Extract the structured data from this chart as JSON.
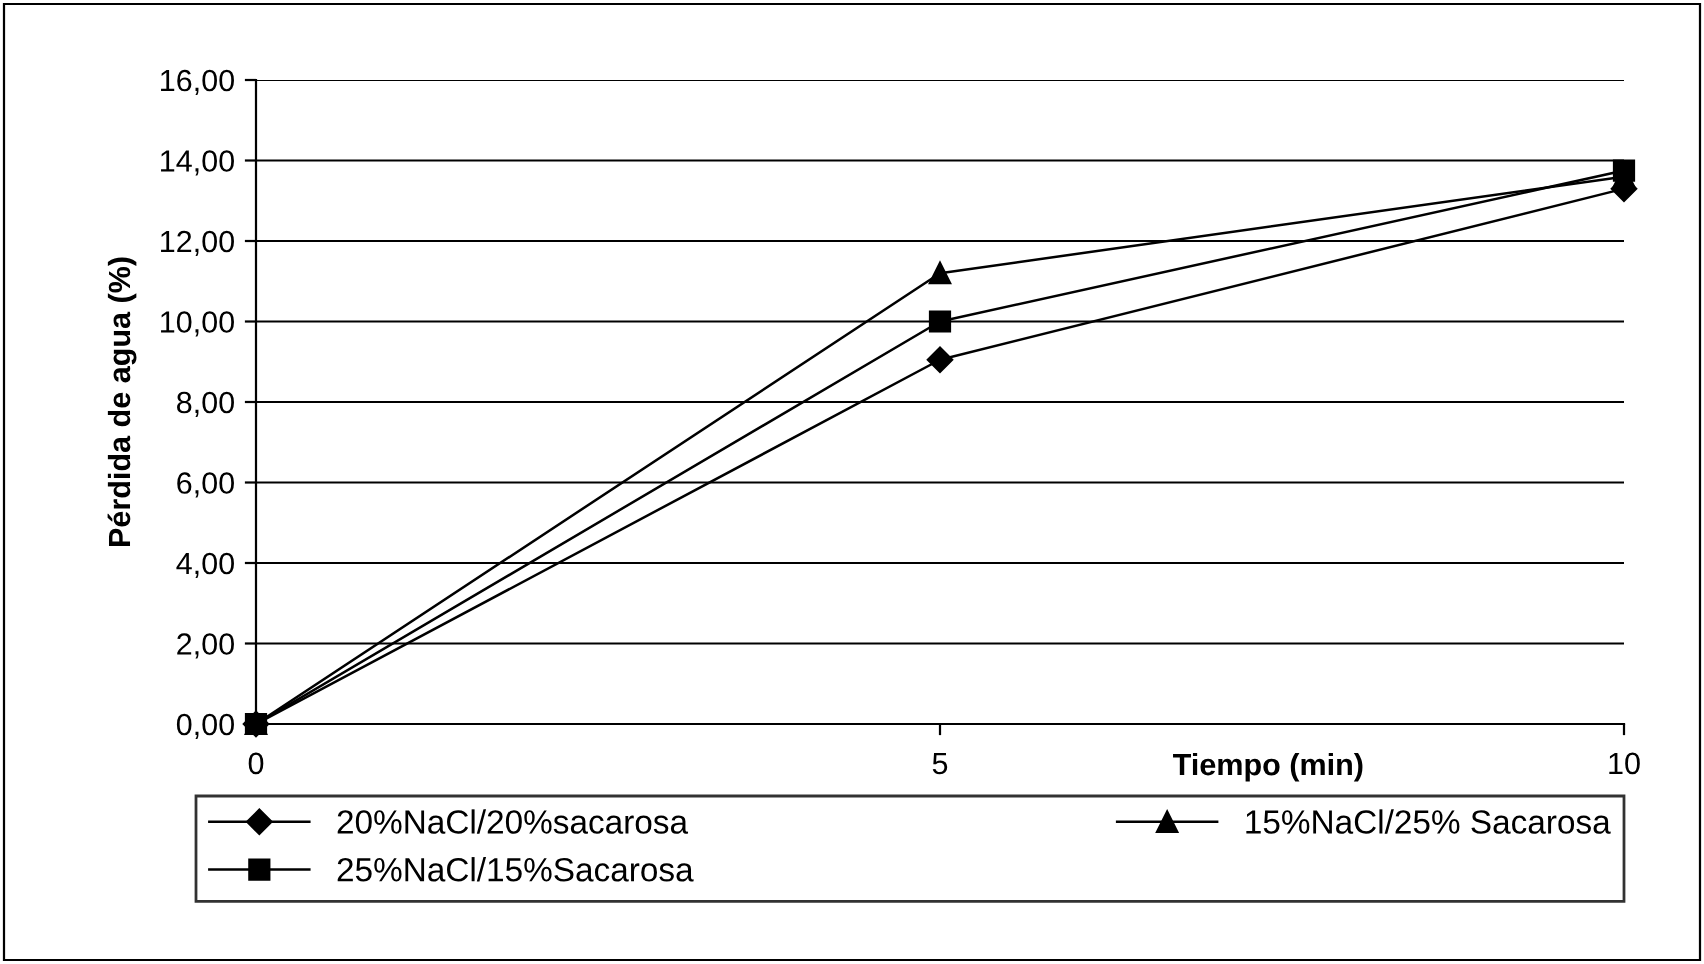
{
  "chart_data": {
    "type": "line",
    "xlabel": "Tiempo (min)",
    "ylabel": "Pérdida de agua (%)",
    "x": [
      0,
      5,
      10
    ],
    "series": [
      {
        "name": "20%NaCl/20%sacarosa",
        "color": "#000000",
        "marker": "diamond",
        "values": [
          0,
          9.05,
          13.3
        ]
      },
      {
        "name": "25%NaCl/15%Sacarosa",
        "color": "#000000",
        "marker": "square",
        "values": [
          0,
          10.0,
          13.75
        ]
      },
      {
        "name": "15%NaCl/25% Sacarosa",
        "color": "#000000",
        "marker": "triangle",
        "values": [
          0,
          11.2,
          13.6
        ]
      }
    ],
    "xlim": [
      0,
      10
    ],
    "xticks": [
      0,
      5,
      10
    ],
    "ylim": [
      0,
      16
    ],
    "yticks": [
      {
        "value": 0,
        "label": "0,00"
      },
      {
        "value": 2,
        "label": "2,00"
      },
      {
        "value": 4,
        "label": "4,00"
      },
      {
        "value": 6,
        "label": "6,00"
      },
      {
        "value": 8,
        "label": "8,00"
      },
      {
        "value": 10,
        "label": "10,00"
      },
      {
        "value": 12,
        "label": "12,00"
      },
      {
        "value": 14,
        "label": "14,00"
      },
      {
        "value": 16,
        "label": "16,00"
      }
    ],
    "grid": "y",
    "legend": "bottom",
    "line_style": "solid"
  }
}
